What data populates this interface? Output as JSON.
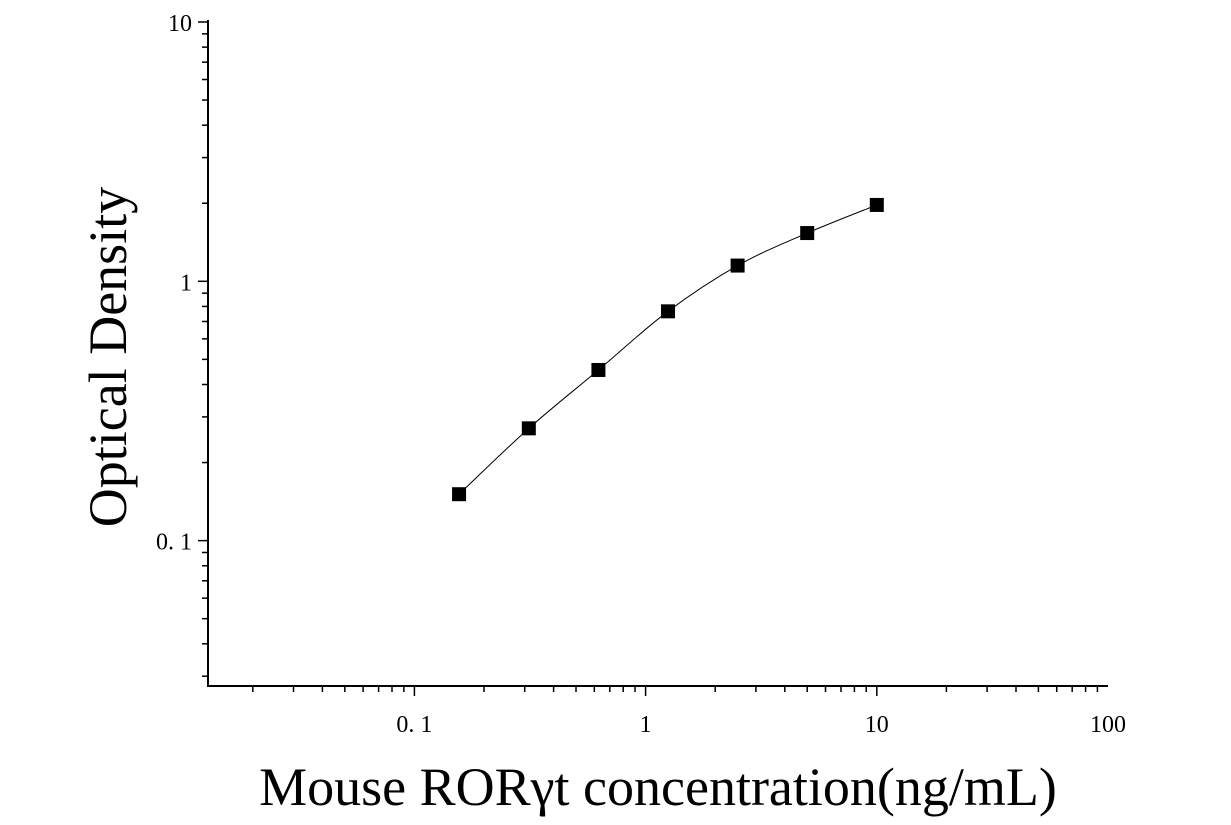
{
  "chart_data": {
    "type": "scatter",
    "xlabel": "Mouse RORγt concentration(ng/mL)",
    "ylabel": "Optical Density",
    "xscale": "log",
    "yscale": "log",
    "xlim": [
      0.0128,
      100
    ],
    "ylim": [
      0.0275,
      10
    ],
    "xticks": [
      {
        "value": 0.1,
        "label": "0. 1"
      },
      {
        "value": 1,
        "label": "1"
      },
      {
        "value": 10,
        "label": "10"
      },
      {
        "value": 100,
        "label": "100"
      }
    ],
    "yticks": [
      {
        "value": 0.1,
        "label": "0. 1"
      },
      {
        "value": 1,
        "label": "1"
      },
      {
        "value": 10,
        "label": "10"
      }
    ],
    "series": [
      {
        "marker": "square",
        "color": "#000000",
        "x": [
          0.156,
          0.3125,
          0.625,
          1.25,
          2.5,
          5,
          10
        ],
        "y": [
          0.151,
          0.271,
          0.455,
          0.766,
          1.15,
          1.535,
          1.97
        ]
      }
    ],
    "fit_line": true,
    "grid": false
  }
}
